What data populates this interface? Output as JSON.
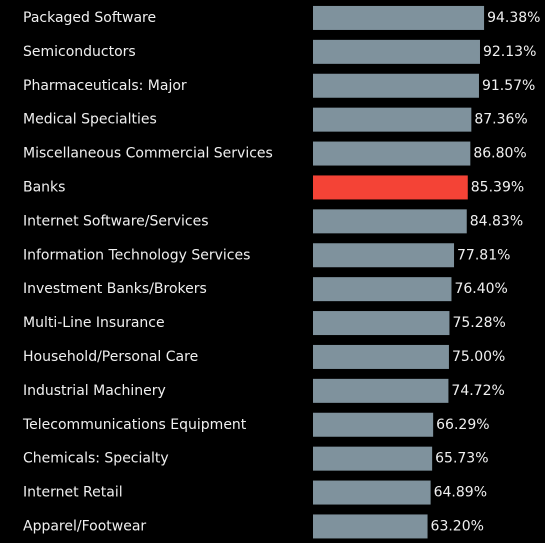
{
  "chart_data": {
    "type": "barh",
    "categories": [
      "Packaged Software",
      "Semiconductors",
      "Pharmaceuticals: Major",
      "Medical Specialties",
      "Miscellaneous Commercial Services",
      "Banks",
      "Internet Software/Services",
      "Information Technology Services",
      "Investment Banks/Brokers",
      "Multi-Line Insurance",
      "Household/Personal Care",
      "Industrial Machinery",
      "Telecommunications Equipment",
      "Chemicals: Specialty",
      "Internet Retail",
      "Apparel/Footwear"
    ],
    "values": [
      94.38,
      92.13,
      91.57,
      87.36,
      86.8,
      85.39,
      84.83,
      77.81,
      76.4,
      75.28,
      75.0,
      74.72,
      66.29,
      65.73,
      64.89,
      63.2
    ],
    "value_labels": [
      "94.38%",
      "92.13%",
      "91.57%",
      "87.36%",
      "86.80%",
      "85.39%",
      "84.83%",
      "77.81%",
      "76.40%",
      "75.28%",
      "75.00%",
      "74.72%",
      "66.29%",
      "65.73%",
      "64.89%",
      "63.20%"
    ],
    "colors": [
      "#7f929d",
      "#7f929d",
      "#7f929d",
      "#7f929d",
      "#7f929d",
      "#f44336",
      "#7f929d",
      "#7f929d",
      "#7f929d",
      "#7f929d",
      "#7f929d",
      "#7f929d",
      "#7f929d",
      "#7f929d",
      "#7f929d",
      "#7f929d"
    ],
    "xlim": [
      0,
      128
    ]
  }
}
